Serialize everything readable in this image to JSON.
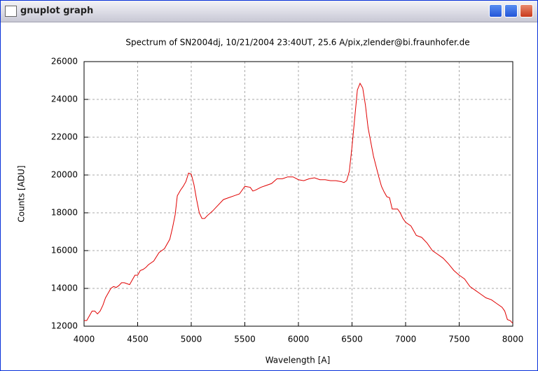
{
  "window": {
    "title": "gnuplot graph"
  },
  "chart_data": {
    "type": "line",
    "title": "Spectrum of SN2004dj, 10/21/2004 23:40UT, 25.6 A/pix,zlender@bi.fraunhofer.de",
    "x_label": "Wavelength [A]",
    "y_label": "Counts [ADU]",
    "xlim": [
      4000,
      8000
    ],
    "xticks": [
      4000,
      4500,
      5000,
      5500,
      6000,
      6500,
      7000,
      7500,
      8000
    ],
    "ylim": [
      12000,
      26000
    ],
    "yticks": [
      12000,
      14000,
      16000,
      18000,
      20000,
      22000,
      24000,
      26000
    ],
    "grid": true,
    "series": [
      {
        "color": "#e00000",
        "x": [
          4000,
          4025,
          4050,
          4075,
          4100,
          4125,
          4150,
          4175,
          4200,
          4250,
          4275,
          4300,
          4325,
          4350,
          4375,
          4400,
          4425,
          4450,
          4475,
          4500,
          4525,
          4550,
          4575,
          4600,
          4650,
          4700,
          4750,
          4800,
          4825,
          4850,
          4870,
          4900,
          4925,
          4950,
          4975,
          5000,
          5025,
          5050,
          5075,
          5100,
          5125,
          5150,
          5200,
          5250,
          5300,
          5350,
          5400,
          5450,
          5500,
          5550,
          5575,
          5600,
          5650,
          5700,
          5750,
          5800,
          5850,
          5900,
          5950,
          6000,
          6050,
          6100,
          6150,
          6200,
          6250,
          6300,
          6350,
          6400,
          6425,
          6450,
          6475,
          6500,
          6525,
          6550,
          6575,
          6600,
          6625,
          6650,
          6700,
          6750,
          6775,
          6800,
          6825,
          6850,
          6875,
          6900,
          6925,
          6950,
          6975,
          7000,
          7050,
          7100,
          7150,
          7200,
          7250,
          7300,
          7350,
          7400,
          7450,
          7500,
          7550,
          7600,
          7650,
          7700,
          7750,
          7800,
          7850,
          7900,
          7925,
          7950,
          7975,
          8000
        ],
        "values": [
          12300,
          12300,
          12550,
          12800,
          12800,
          12650,
          12800,
          13100,
          13500,
          14000,
          14100,
          14050,
          14150,
          14300,
          14300,
          14250,
          14200,
          14450,
          14700,
          14700,
          14950,
          15000,
          15100,
          15250,
          15450,
          15900,
          16100,
          16600,
          17200,
          17900,
          18900,
          19200,
          19400,
          19650,
          20100,
          20050,
          19500,
          18700,
          18000,
          17700,
          17700,
          17850,
          18100,
          18400,
          18700,
          18800,
          18900,
          19000,
          19400,
          19350,
          19150,
          19200,
          19350,
          19450,
          19550,
          19800,
          19800,
          19900,
          19900,
          19750,
          19700,
          19800,
          19850,
          19750,
          19750,
          19700,
          19700,
          19650,
          19600,
          19700,
          20200,
          21500,
          23000,
          24500,
          24850,
          24600,
          23700,
          22500,
          21000,
          19900,
          19400,
          19100,
          18850,
          18800,
          18200,
          18200,
          18200,
          18000,
          17700,
          17500,
          17300,
          16800,
          16700,
          16400,
          16000,
          15800,
          15600,
          15300,
          14950,
          14700,
          14500,
          14100,
          13900,
          13700,
          13500,
          13400,
          13200,
          13000,
          12800,
          12350,
          12300,
          12150
        ]
      }
    ]
  }
}
